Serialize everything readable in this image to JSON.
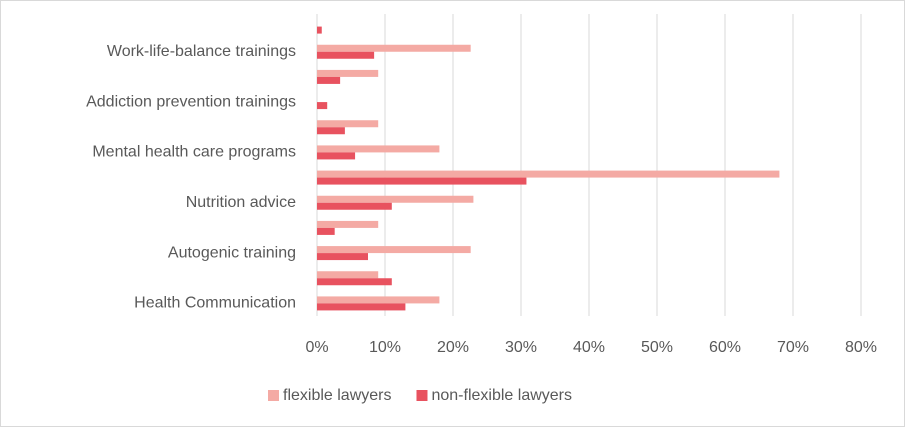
{
  "chart_data": {
    "type": "barh",
    "categories": [
      null,
      "Work-life-balance trainings",
      null,
      "Addiction prevention trainings",
      null,
      "Mental health care programs",
      null,
      "Nutrition advice",
      null,
      "Autogenic training",
      null,
      "Health Communication"
    ],
    "series": [
      {
        "name": "flexible lawyers",
        "color": "#f4aaa4",
        "values": [
          0,
          22.6,
          9,
          0,
          9,
          18,
          68,
          23,
          9,
          22.6,
          9,
          18
        ]
      },
      {
        "name": "non-flexible lawyers",
        "color": "#e8525f",
        "values": [
          0.7,
          8.4,
          3.4,
          1.5,
          4.1,
          5.6,
          30.8,
          11,
          2.6,
          7.5,
          11,
          13
        ]
      }
    ],
    "xlim": [
      0,
      80
    ],
    "xticks": [
      {
        "value": 0,
        "label": "0%"
      },
      {
        "value": 10,
        "label": "10%"
      },
      {
        "value": 20,
        "label": "20%"
      },
      {
        "value": 30,
        "label": "30%"
      },
      {
        "value": 40,
        "label": "40%"
      },
      {
        "value": 50,
        "label": "50%"
      },
      {
        "value": 60,
        "label": "60%"
      },
      {
        "value": 70,
        "label": "70%"
      },
      {
        "value": 80,
        "label": "80%"
      }
    ],
    "grid": true,
    "legend": "bottom"
  }
}
